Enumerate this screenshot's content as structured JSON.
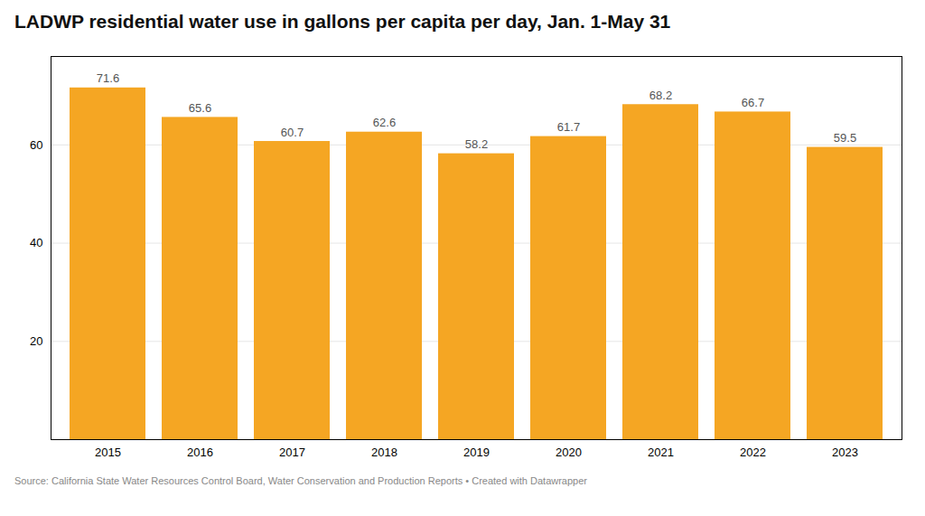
{
  "chart_data": {
    "type": "bar",
    "title": "LADWP residential water use in gallons per capita per day, Jan. 1-May 31",
    "categories": [
      "2015",
      "2016",
      "2017",
      "2018",
      "2019",
      "2020",
      "2021",
      "2022",
      "2023"
    ],
    "values": [
      71.6,
      65.6,
      60.7,
      62.6,
      58.2,
      61.7,
      68.2,
      66.7,
      59.5
    ],
    "color": "#F5A623",
    "ylim": [
      0,
      78
    ],
    "yticks": [
      20,
      40,
      60
    ],
    "grid": true,
    "data_labels": true,
    "annotations": [
      "Source: California State Water Resources Control Board, Water Conservation and Production Reports • Created with Datawrapper"
    ]
  }
}
